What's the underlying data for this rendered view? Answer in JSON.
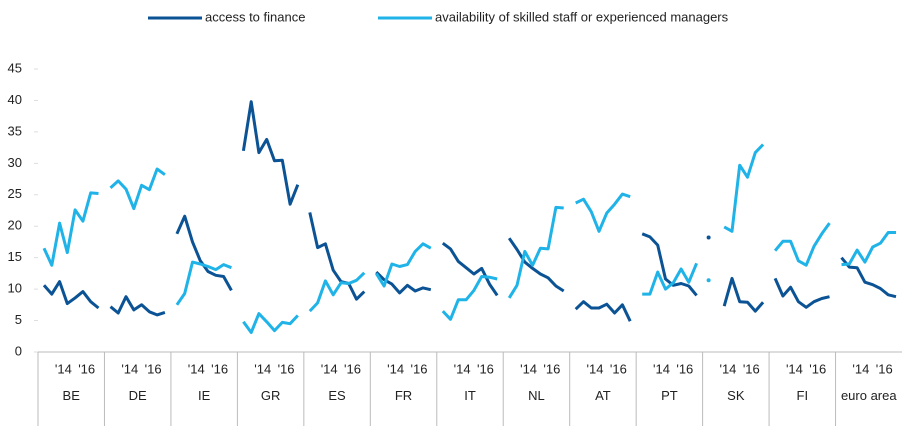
{
  "chart_data": {
    "type": "line",
    "groups": [
      "BE",
      "DE",
      "IE",
      "GR",
      "ES",
      "FR",
      "IT",
      "NL",
      "AT",
      "PT",
      "SK",
      "FI",
      "euro area"
    ],
    "categories": [
      null,
      null,
      null,
      "'14",
      null,
      null,
      "'16",
      null
    ],
    "ylim": [
      0,
      45
    ],
    "yticks": [
      0,
      5,
      10,
      15,
      20,
      25,
      30,
      35,
      40,
      45
    ],
    "series": [
      {
        "name": "access to finance",
        "color": "#0b5394",
        "values": [
          [
            10.6,
            9.2,
            11.2,
            7.7,
            8.6,
            9.6,
            8.0,
            7.0
          ],
          [
            7.2,
            6.2,
            8.8,
            6.7,
            7.5,
            6.4,
            5.9,
            6.3
          ],
          [
            18.8,
            21.6,
            17.5,
            14.5,
            12.8,
            12.2,
            12.0,
            9.8
          ],
          [
            32.0,
            39.8,
            31.7,
            33.8,
            30.4,
            30.5,
            23.5,
            26.6
          ],
          [
            22.2,
            16.6,
            17.2,
            13.0,
            11.2,
            10.9,
            8.4,
            9.6
          ],
          [
            12.7,
            11.5,
            10.8,
            9.4,
            10.6,
            9.7,
            10.2,
            9.9
          ],
          [
            17.3,
            16.4,
            14.4,
            13.4,
            12.4,
            13.3,
            10.8,
            9.0
          ],
          [
            18.1,
            16.3,
            14.3,
            13.3,
            12.4,
            11.8,
            10.5,
            9.7
          ],
          [
            6.8,
            8.0,
            7.0,
            7.0,
            7.6,
            6.2,
            7.5,
            4.9
          ],
          [
            18.8,
            18.3,
            17.0,
            11.6,
            10.6,
            10.9,
            10.5,
            9.0
          ],
          [
            18.2,
            null,
            7.3,
            11.7,
            8.0,
            7.9,
            6.5,
            7.9
          ],
          [
            11.7,
            8.9,
            10.3,
            8.0,
            7.1,
            8.0,
            8.5,
            8.8
          ],
          [
            15.0,
            13.5,
            13.4,
            11.1,
            10.7,
            10.1,
            9.1,
            8.8
          ]
        ]
      },
      {
        "name": "availability of skilled staff or experienced managers",
        "color": "#1fb3e8",
        "values": [
          [
            16.5,
            13.8,
            20.5,
            15.8,
            22.6,
            20.8,
            25.3,
            25.2
          ],
          [
            26.1,
            27.2,
            25.9,
            22.8,
            26.5,
            25.8,
            29.1,
            28.2
          ],
          [
            7.5,
            9.3,
            14.3,
            14.0,
            13.6,
            13.1,
            13.9,
            13.4
          ],
          [
            4.8,
            3.1,
            6.1,
            4.8,
            3.4,
            4.7,
            4.5,
            5.8
          ],
          [
            6.5,
            7.8,
            11.3,
            9.1,
            11.0,
            10.9,
            11.4,
            12.6
          ],
          [
            12.5,
            10.5,
            14.0,
            13.6,
            13.9,
            16.0,
            17.2,
            16.5
          ],
          [
            6.5,
            5.2,
            8.3,
            8.3,
            9.8,
            12.0,
            11.9,
            11.6
          ],
          [
            8.6,
            10.6,
            16.0,
            13.8,
            16.5,
            16.4,
            23.0,
            22.9
          ],
          [
            23.7,
            24.3,
            22.3,
            19.2,
            22.1,
            23.5,
            25.1,
            24.7
          ],
          [
            9.2,
            9.2,
            12.7,
            10.0,
            11.0,
            13.2,
            11.1,
            14.1
          ],
          [
            11.4,
            null,
            19.9,
            19.2,
            29.7,
            27.8,
            31.7,
            33.0
          ],
          [
            16.1,
            17.6,
            17.6,
            14.5,
            13.8,
            16.8,
            18.8,
            20.5
          ],
          [
            13.9,
            14.0,
            16.2,
            14.3,
            16.7,
            17.3,
            19.0,
            19.0
          ]
        ]
      }
    ]
  }
}
